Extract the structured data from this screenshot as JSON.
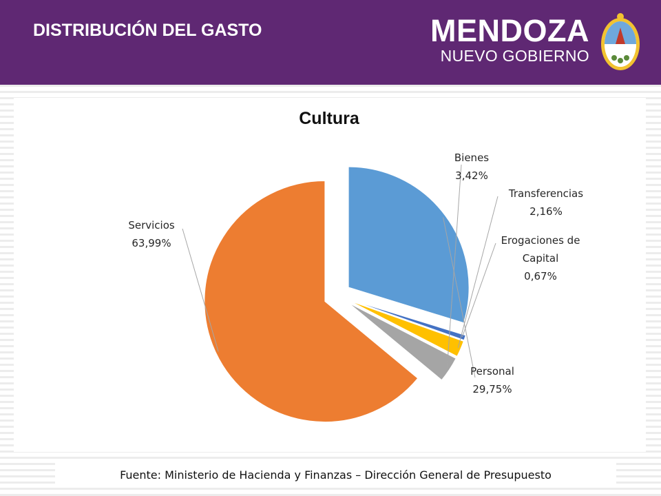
{
  "header": {
    "title": "DISTRIBUCIÓN DEL GASTO",
    "brand_main": "MENDOZA",
    "brand_sub": "NUEVO GOBIERNO",
    "background_color": "#5f2873"
  },
  "chart_data": {
    "type": "pie",
    "title": "Cultura",
    "slices": [
      {
        "name": "Personal",
        "label": "Personal",
        "value": 29.75,
        "value_label": "29,75%",
        "color": "#5b9bd5"
      },
      {
        "name": "Erogaciones de Capital",
        "label": [
          "Erogaciones de",
          "Capital"
        ],
        "value": 0.67,
        "value_label": "0,67%",
        "color": "#4472c4"
      },
      {
        "name": "Transferencias",
        "label": "Transferencias",
        "value": 2.16,
        "value_label": "2,16%",
        "color": "#ffc000"
      },
      {
        "name": "Bienes",
        "label": "Bienes",
        "value": 3.42,
        "value_label": "3,42%",
        "color": "#a5a5a5"
      },
      {
        "name": "Servicios",
        "label": "Servicios",
        "value": 63.99,
        "value_label": "63,99%",
        "color": "#ed7d31"
      }
    ],
    "legend": "none"
  },
  "footer": {
    "source": "Fuente: Ministerio de Hacienda y Finanzas – Dirección General de Presupuesto"
  }
}
